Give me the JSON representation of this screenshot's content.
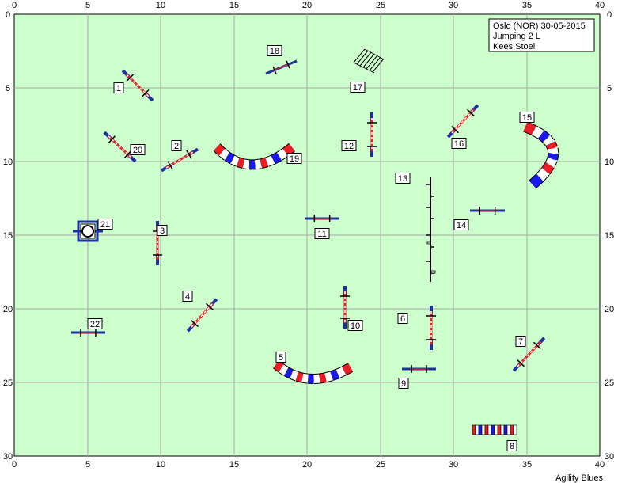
{
  "course": {
    "info_lines": [
      "Oslo (NOR) 30-05-2015",
      "Jumping 2 L",
      "Kees Stoel"
    ],
    "footer": "Agility Blues",
    "x_ticks": [
      "0",
      "5",
      "10",
      "15",
      "20",
      "25",
      "30",
      "35",
      "40"
    ],
    "y_ticks": [
      "0",
      "5",
      "10",
      "15",
      "20",
      "25",
      "30"
    ],
    "colors": {
      "field": "#ccffcc",
      "grid": "#a8a8a8",
      "tunnel_red": "#ee1c25",
      "tunnel_blue": "#1a1aee",
      "pole_base": "#1f2fa0"
    },
    "obstacles": [
      {
        "number": "1",
        "type": "jump"
      },
      {
        "number": "2",
        "type": "jump"
      },
      {
        "number": "3",
        "type": "jump"
      },
      {
        "number": "4",
        "type": "jump"
      },
      {
        "number": "5",
        "type": "tunnel"
      },
      {
        "number": "6",
        "type": "jump"
      },
      {
        "number": "7",
        "type": "jump"
      },
      {
        "number": "8",
        "type": "tunnel"
      },
      {
        "number": "9",
        "type": "wall"
      },
      {
        "number": "10",
        "type": "jump"
      },
      {
        "number": "11",
        "type": "wall"
      },
      {
        "number": "12",
        "type": "jump"
      },
      {
        "number": "13",
        "type": "dog-walk"
      },
      {
        "number": "14",
        "type": "wall"
      },
      {
        "number": "15",
        "type": "tunnel"
      },
      {
        "number": "16",
        "type": "jump"
      },
      {
        "number": "17",
        "type": "weave"
      },
      {
        "number": "18",
        "type": "wall"
      },
      {
        "number": "19",
        "type": "tunnel"
      },
      {
        "number": "20",
        "type": "jump"
      },
      {
        "number": "21",
        "type": "tire"
      },
      {
        "number": "22",
        "type": "wall"
      }
    ]
  }
}
